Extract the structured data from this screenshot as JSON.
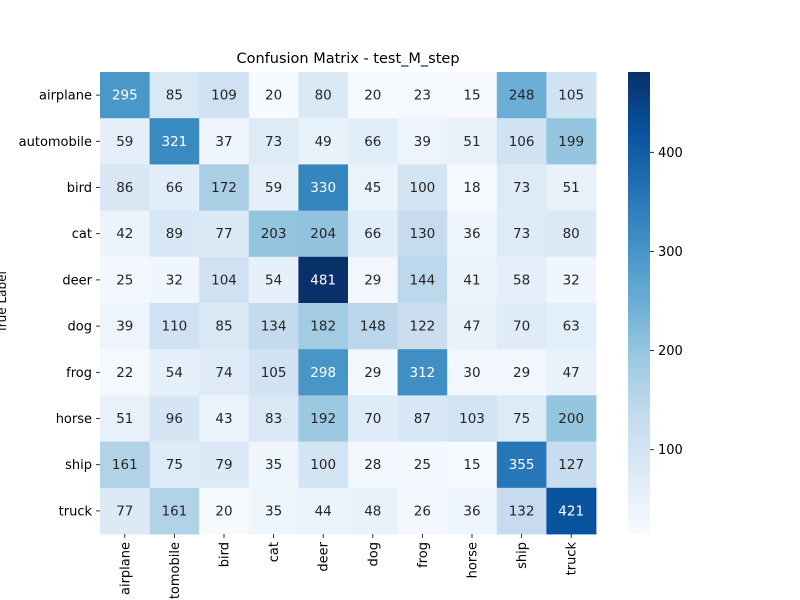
{
  "chart_data": {
    "type": "heatmap",
    "title": "Confusion Matrix - test_M_step",
    "ylabel": "True Label",
    "xlabel": "",
    "rows": [
      "airplane",
      "automobile",
      "bird",
      "cat",
      "deer",
      "dog",
      "frog",
      "horse",
      "ship",
      "truck"
    ],
    "columns": [
      "airplane",
      "automobile",
      "bird",
      "cat",
      "deer",
      "dog",
      "frog",
      "horse",
      "ship",
      "truck"
    ],
    "values": [
      [
        295,
        85,
        109,
        20,
        80,
        20,
        23,
        15,
        248,
        105
      ],
      [
        59,
        321,
        37,
        73,
        49,
        66,
        39,
        51,
        106,
        199
      ],
      [
        86,
        66,
        172,
        59,
        330,
        45,
        100,
        18,
        73,
        51
      ],
      [
        42,
        89,
        77,
        203,
        204,
        66,
        130,
        36,
        73,
        80
      ],
      [
        25,
        32,
        104,
        54,
        481,
        29,
        144,
        41,
        58,
        32
      ],
      [
        39,
        110,
        85,
        134,
        182,
        148,
        122,
        47,
        70,
        63
      ],
      [
        22,
        54,
        74,
        105,
        298,
        29,
        312,
        30,
        29,
        47
      ],
      [
        51,
        96,
        43,
        83,
        192,
        70,
        87,
        103,
        75,
        200
      ],
      [
        161,
        75,
        79,
        35,
        100,
        28,
        25,
        15,
        355,
        127
      ],
      [
        77,
        161,
        20,
        35,
        44,
        48,
        26,
        36,
        132,
        421
      ]
    ],
    "colormap": "Blues",
    "vmin": 15,
    "vmax": 481,
    "colorbar_ticks": [
      100,
      200,
      300,
      400
    ],
    "colors": {
      "low": "#f7fbff",
      "high": "#08306b",
      "text_dark": "#262626",
      "text_light": "#ffffff"
    }
  }
}
